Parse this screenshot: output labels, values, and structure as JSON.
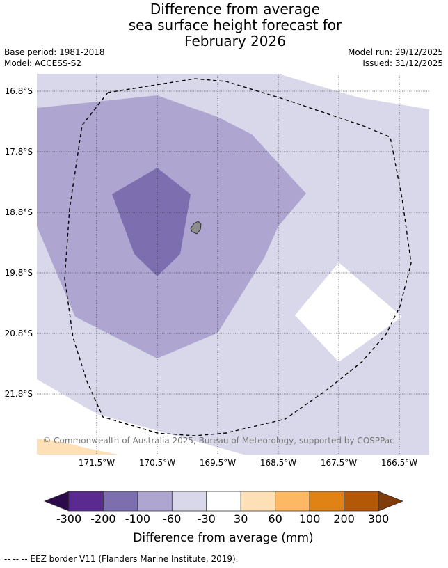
{
  "title": {
    "line1": "Difference from average",
    "line2": "sea surface height forecast for",
    "line3": "February 2026"
  },
  "meta": {
    "base_period": "Base period: 1981-2018",
    "model": "Model: ACCESS-S2",
    "model_run": "Model run: 29/12/2025",
    "issued": "Issued: 31/12/2025"
  },
  "map": {
    "lat_labels": [
      "16.8°S",
      "17.8°S",
      "18.8°S",
      "19.8°S",
      "20.8°S",
      "21.8°S"
    ],
    "lon_labels": [
      "171.5°W",
      "170.5°W",
      "169.5°W",
      "168.5°W",
      "167.5°W",
      "166.5°W"
    ],
    "copyright": "© Commonwealth of Australia 2025, Bureau of Meteorology, supported by COSPPac"
  },
  "colorbar": {
    "ticks": [
      "-300",
      "-200",
      "-100",
      "-60",
      "-30",
      "30",
      "60",
      "100",
      "200",
      "300"
    ],
    "colors": [
      "#2d0a4a",
      "#5b2a91",
      "#7d6eb0",
      "#aea6d0",
      "#d8d8ea",
      "#ffffff",
      "#fee0b7",
      "#fdb863",
      "#e08214",
      "#b35806",
      "#7f3b08"
    ],
    "label": "Difference from average (mm)"
  },
  "footer": "-- -- -- EEZ border V11 (Flanders Marine Institute, 2019)."
}
